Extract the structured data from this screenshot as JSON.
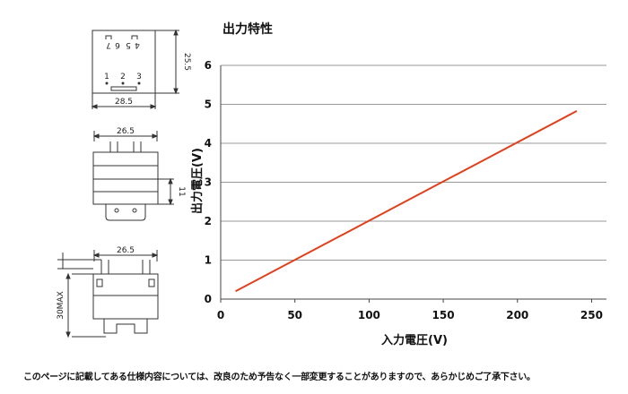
{
  "drawings": {
    "top_view": {
      "pins_top": [
        "7",
        "6",
        "5",
        "4"
      ],
      "pins_bottom": [
        "1",
        "2",
        "3"
      ],
      "width_label": "28.5",
      "height_label": "25.5"
    },
    "front_view": {
      "width_label": "26.5",
      "height_label": "11"
    },
    "side_view": {
      "width_label": "26.5",
      "height_label": "30MAX"
    }
  },
  "chart_data": {
    "type": "line",
    "title": "出力特性",
    "xlabel": "入力電圧(V)",
    "ylabel": "出力電圧(V)",
    "xlim": [
      0,
      260
    ],
    "ylim": [
      0,
      6
    ],
    "xticks": [
      0,
      50,
      100,
      150,
      200,
      250
    ],
    "yticks": [
      0,
      1,
      2,
      3,
      4,
      5,
      6
    ],
    "grid": "horizontal",
    "series": [
      {
        "color": "#e0401c",
        "x": [
          10,
          240
        ],
        "y": [
          0.2,
          4.83
        ]
      }
    ]
  },
  "footer": "このページに記載してある仕様内容については、改良のため予告なく一部変更することがありますので、あらかじめご了承下さい。"
}
